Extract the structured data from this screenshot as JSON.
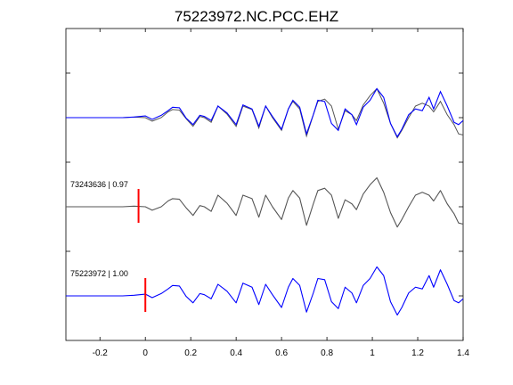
{
  "chart_data": {
    "type": "line",
    "title": "75223972.NC.PCC.EHZ",
    "xlabel": "",
    "ylabel": "",
    "xlim": [
      -0.35,
      1.4
    ],
    "x_ticks": [
      -0.2,
      0,
      0.2,
      0.4,
      0.6,
      0.8,
      1,
      1.2,
      1.4
    ],
    "x_tick_labels": [
      "-0.2",
      "0",
      "0.2",
      "0.4",
      "0.6",
      "0.8",
      "1",
      "1.2",
      "1.4"
    ],
    "y_ticks": [
      1,
      2,
      3,
      4,
      5,
      6
    ],
    "ylim": [
      0,
      7
    ],
    "grid": false,
    "colors": {
      "blue": "#0000ff",
      "gray": "#555555",
      "marker": "#ff0000",
      "axes": "#000000"
    },
    "traces": [
      {
        "label": "75223972 | 1.00",
        "color": "#0000ff",
        "baseline": 1,
        "marker_time": 0.0,
        "x": [
          -0.35,
          -0.2,
          -0.1,
          -0.05,
          0.0,
          0.03,
          0.07,
          0.1,
          0.12,
          0.15,
          0.18,
          0.21,
          0.24,
          0.26,
          0.29,
          0.32,
          0.36,
          0.4,
          0.43,
          0.47,
          0.5,
          0.53,
          0.56,
          0.6,
          0.63,
          0.65,
          0.68,
          0.71,
          0.74,
          0.76,
          0.79,
          0.82,
          0.85,
          0.88,
          0.91,
          0.93,
          0.96,
          0.99,
          1.02,
          1.05,
          1.08,
          1.11,
          1.13,
          1.16,
          1.19,
          1.22,
          1.25,
          1.27,
          1.3,
          1.33,
          1.36,
          1.38,
          1.4
        ],
        "y": [
          0,
          0,
          0,
          0.01,
          0.03,
          -0.03,
          0.04,
          0.12,
          0.18,
          0.17,
          -0.01,
          -0.12,
          0.04,
          0.02,
          -0.05,
          0.2,
          0.08,
          -0.12,
          0.22,
          0.15,
          -0.15,
          0.2,
          0.02,
          -0.2,
          0.15,
          0.3,
          0.18,
          -0.28,
          0.05,
          0.3,
          0.28,
          -0.1,
          -0.22,
          0.15,
          0.05,
          -0.12,
          0.18,
          0.3,
          0.5,
          0.35,
          -0.1,
          -0.33,
          -0.2,
          0.05,
          0.15,
          0.12,
          0.35,
          0.15,
          0.45,
          0.2,
          -0.08,
          -0.12,
          -0.05
        ]
      },
      {
        "label": "73243636 | 0.97",
        "color": "#555555",
        "baseline": 3,
        "marker_time": -0.03,
        "x": [
          -0.35,
          -0.2,
          -0.1,
          -0.05,
          0.0,
          0.03,
          0.07,
          0.1,
          0.12,
          0.15,
          0.18,
          0.21,
          0.24,
          0.26,
          0.29,
          0.32,
          0.36,
          0.4,
          0.43,
          0.47,
          0.5,
          0.53,
          0.56,
          0.6,
          0.63,
          0.65,
          0.68,
          0.71,
          0.74,
          0.76,
          0.79,
          0.82,
          0.85,
          0.88,
          0.91,
          0.93,
          0.96,
          0.99,
          1.02,
          1.05,
          1.08,
          1.11,
          1.13,
          1.16,
          1.19,
          1.22,
          1.25,
          1.27,
          1.3,
          1.33,
          1.36,
          1.38,
          1.4
        ],
        "y": [
          0,
          0,
          0,
          0.01,
          0.0,
          -0.06,
          0.0,
          0.1,
          0.14,
          0.13,
          -0.02,
          -0.15,
          0.02,
          0.0,
          -0.08,
          0.2,
          0.06,
          -0.15,
          0.2,
          0.14,
          -0.18,
          0.2,
          0.0,
          -0.22,
          0.15,
          0.28,
          0.15,
          -0.32,
          0.05,
          0.28,
          0.32,
          0.2,
          -0.2,
          0.12,
          0.05,
          -0.05,
          0.22,
          0.38,
          0.5,
          0.25,
          -0.1,
          -0.35,
          -0.22,
          0.0,
          0.2,
          0.25,
          0.2,
          0.1,
          0.28,
          0.05,
          -0.12,
          -0.28,
          -0.3
        ]
      },
      {
        "label": "",
        "baseline": 5,
        "overlay": true
      }
    ]
  }
}
